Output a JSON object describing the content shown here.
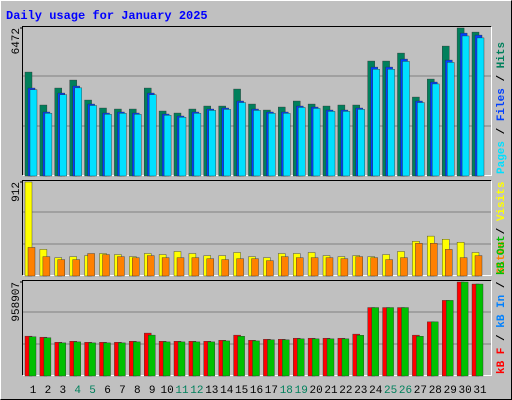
{
  "chart_data": {
    "type": "bar",
    "title": "Daily usage for January 2025",
    "categories": [
      1,
      2,
      3,
      4,
      5,
      6,
      7,
      8,
      9,
      10,
      11,
      12,
      13,
      14,
      15,
      16,
      17,
      18,
      19,
      20,
      21,
      22,
      23,
      24,
      25,
      26,
      27,
      28,
      29,
      30,
      31
    ],
    "category_colors": [
      "#000000",
      "#000000",
      "#000000",
      "#00805c",
      "#00805c",
      "#000000",
      "#000000",
      "#000000",
      "#000000",
      "#000000",
      "#00805c",
      "#00805c",
      "#000000",
      "#000000",
      "#000000",
      "#000000",
      "#000000",
      "#00805c",
      "#00805c",
      "#000000",
      "#000000",
      "#000000",
      "#000000",
      "#000000",
      "#00805c",
      "#00805c",
      "#000000",
      "#000000",
      "#000000",
      "#000000",
      "#000000"
    ],
    "grid": true,
    "panels": [
      {
        "ylim": [
          0,
          6472
        ],
        "yticks": [
          6472
        ],
        "legend_reversed": false,
        "series": [
          {
            "name": "Hits",
            "color": "#00805c",
            "values": [
              4545,
              3103,
              3846,
              4195,
              3321,
              2972,
              2928,
              2928,
              3846,
              2841,
              2753,
              2928,
              3059,
              3059,
              3802,
              3146,
              2884,
              3015,
              3278,
              3146,
              3059,
              3103,
              3103,
              5026,
              5026,
              5375,
              3452,
              4239,
              5681,
              6472,
              6293
            ]
          },
          {
            "name": "Files",
            "color": "#0040ff",
            "values": [
              3846,
              2797,
              3627,
              3933,
              3146,
              2753,
              2797,
              2753,
              3627,
              2709,
              2622,
              2797,
              2928,
              2972,
              3278,
              2928,
              2797,
              2797,
              3059,
              3015,
              2884,
              2884,
              2972,
              4763,
              4763,
              5113,
              3278,
              4108,
              5069,
              6249,
              6162
            ]
          },
          {
            "name": "Pages",
            "color": "#00e0ff",
            "values": [
              3770,
              2741,
              3555,
              3855,
              3083,
              2698,
              2741,
              2698,
              3555,
              2655,
              2570,
              2741,
              2869,
              2913,
              3212,
              2869,
              2741,
              2741,
              2998,
              2955,
              2826,
              2826,
              2913,
              4668,
              4668,
              5011,
              3212,
              4026,
              4968,
              6124,
              6039
            ]
          }
        ]
      },
      {
        "ylim": [
          0,
          912
        ],
        "yticks": [
          912
        ],
        "legend_reversed": false,
        "series": [
          {
            "name": "Visits",
            "color": "#ffff00",
            "values": [
              912,
              258,
              178,
              188,
              198,
              218,
              208,
              188,
              218,
              208,
              238,
              218,
              198,
              198,
              228,
              188,
              178,
              218,
              218,
              228,
              198,
              188,
              198,
              188,
              208,
              238,
              337,
              387,
              357,
              327,
              228
            ]
          },
          {
            "name": "Sites",
            "color": "#ff8000",
            "values": [
              277,
              188,
              159,
              159,
              218,
              208,
              188,
              178,
              198,
              178,
              178,
              178,
              168,
              159,
              168,
              168,
              149,
              188,
              178,
              178,
              178,
              168,
              188,
              178,
              159,
              178,
              317,
              317,
              258,
              178,
              198
            ]
          }
        ]
      },
      {
        "ylim": [
          0,
          958907
        ],
        "yticks": [
          958907
        ],
        "legend_reversed": true,
        "series": [
          {
            "name": "kB F",
            "color": "#ff0000",
            "values": [
              406497,
              396074,
              343959,
              354382,
              343959,
              343959,
              343959,
              354382,
              437766,
              354382,
              354382,
              354382,
              354382,
              364805,
              416920,
              364805,
              375228,
              375228,
              385651,
              385651,
              385651,
              385651,
              427343,
              698341,
              698341,
              698341,
              416920,
              552419,
              771302,
              958907,
              938070
            ]
          },
          {
            "name": "kB In",
            "color": "#0080ff",
            "values": [
              0,
              0,
              0,
              0,
              0,
              0,
              0,
              0,
              0,
              0,
              0,
              0,
              0,
              0,
              0,
              0,
              0,
              0,
              0,
              0,
              0,
              0,
              0,
              0,
              0,
              0,
              0,
              0,
              0,
              0,
              0
            ]
          },
          {
            "name": "kB Out",
            "color": "#00c000",
            "values": [
              400000,
              390000,
              338000,
              348000,
              338000,
              338000,
              338000,
              348000,
              417000,
              348000,
              348000,
              348000,
              348000,
              358000,
              406000,
              358000,
              369000,
              369000,
              379000,
              379000,
              379000,
              379000,
              416000,
              698341,
              698341,
              698341,
              406000,
              552419,
              771302,
              958907,
              938070
            ]
          }
        ]
      }
    ]
  }
}
